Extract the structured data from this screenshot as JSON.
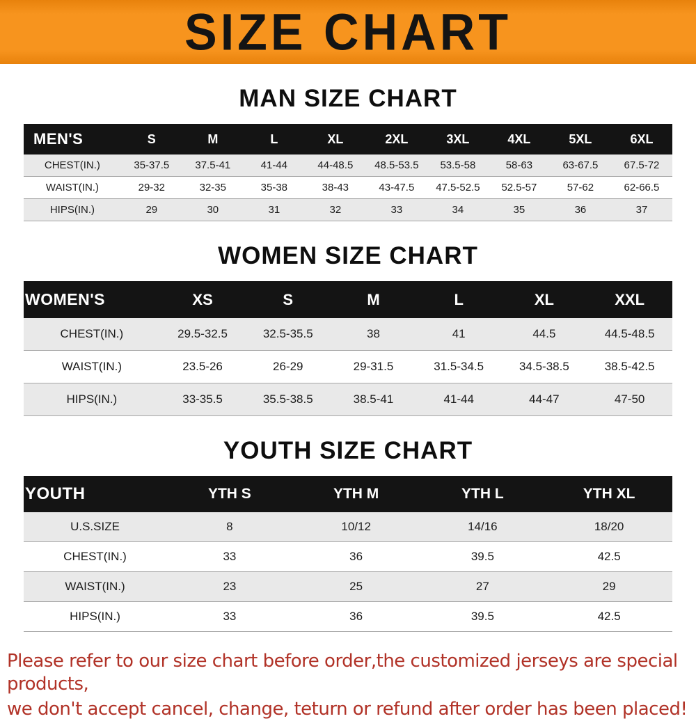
{
  "banner": {
    "title": "SIZE CHART"
  },
  "colors": {
    "banner_bg": "#f7941e",
    "header_bar": "#141414",
    "row_stripe": "#e9e9e9",
    "disclaimer_text": "#b13227"
  },
  "sections": [
    {
      "heading": "MAN SIZE CHART",
      "table": {
        "header": [
          "MEN'S",
          "S",
          "M",
          "L",
          "XL",
          "2XL",
          "3XL",
          "4XL",
          "5XL",
          "6XL"
        ],
        "rows": [
          [
            "CHEST(IN.)",
            "35-37.5",
            "37.5-41",
            "41-44",
            "44-48.5",
            "48.5-53.5",
            "53.5-58",
            "58-63",
            "63-67.5",
            "67.5-72"
          ],
          [
            "WAIST(IN.)",
            "29-32",
            "32-35",
            "35-38",
            "38-43",
            "43-47.5",
            "47.5-52.5",
            "52.5-57",
            "57-62",
            "62-66.5"
          ],
          [
            "HIPS(IN.)",
            "29",
            "30",
            "31",
            "32",
            "33",
            "34",
            "35",
            "36",
            "37"
          ]
        ]
      }
    },
    {
      "heading": "WOMEN SIZE CHART",
      "table": {
        "header": [
          "WOMEN'S",
          "XS",
          "S",
          "M",
          "L",
          "XL",
          "XXL"
        ],
        "rows": [
          [
            "CHEST(IN.)",
            "29.5-32.5",
            "32.5-35.5",
            "38",
            "41",
            "44.5",
            "44.5-48.5"
          ],
          [
            "WAIST(IN.)",
            "23.5-26",
            "26-29",
            "29-31.5",
            "31.5-34.5",
            "34.5-38.5",
            "38.5-42.5"
          ],
          [
            "HIPS(IN.)",
            "33-35.5",
            "35.5-38.5",
            "38.5-41",
            "41-44",
            "44-47",
            "47-50"
          ]
        ]
      }
    },
    {
      "heading": "YOUTH SIZE CHART",
      "table": {
        "header": [
          "YOUTH",
          "YTH S",
          "YTH M",
          "YTH L",
          "YTH XL"
        ],
        "rows": [
          [
            "U.S.SIZE",
            "8",
            "10/12",
            "14/16",
            "18/20"
          ],
          [
            "CHEST(IN.)",
            "33",
            "36",
            "39.5",
            "42.5"
          ],
          [
            "WAIST(IN.)",
            "23",
            "25",
            "27",
            "29"
          ],
          [
            "HIPS(IN.)",
            "33",
            "36",
            "39.5",
            "42.5"
          ]
        ]
      }
    }
  ],
  "disclaimer": {
    "line1": "Please refer to our size chart before order,the customized jerseys are special products,",
    "line2": "we don't accept cancel, change, teturn or refund after order has been placed!"
  }
}
